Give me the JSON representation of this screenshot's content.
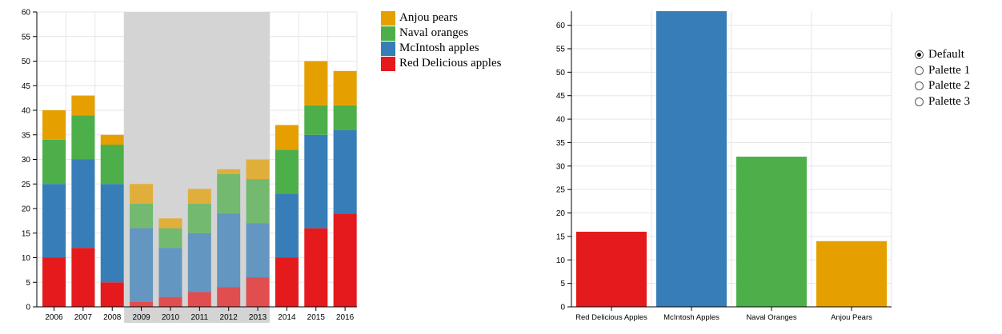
{
  "chart_data": [
    {
      "type": "bar",
      "stacked": true,
      "categories": [
        "2006",
        "2007",
        "2008",
        "2009",
        "2010",
        "2011",
        "2012",
        "2013",
        "2014",
        "2015",
        "2016"
      ],
      "series": [
        {
          "name": "Red Delicious apples",
          "values": [
            10,
            12,
            5,
            1,
            2,
            3,
            4,
            6,
            10,
            16,
            19
          ]
        },
        {
          "name": "McIntosh apples",
          "values": [
            15,
            18,
            20,
            15,
            10,
            12,
            15,
            11,
            13,
            19,
            17
          ]
        },
        {
          "name": "Naval oranges",
          "values": [
            9,
            9,
            8,
            5,
            4,
            6,
            8,
            9,
            9,
            6,
            5
          ]
        },
        {
          "name": "Anjou pears",
          "values": [
            6,
            4,
            2,
            4,
            2,
            3,
            1,
            4,
            5,
            9,
            7
          ]
        }
      ],
      "ylim": [
        0,
        60
      ],
      "yticks": [
        0,
        5,
        10,
        15,
        20,
        25,
        30,
        35,
        40,
        45,
        50,
        55,
        60
      ],
      "grid": true,
      "highlighted_range": [
        "2009",
        "2013"
      ],
      "legend_position": "right"
    },
    {
      "type": "bar",
      "categories": [
        "Red Delicious Apples",
        "McIntosh Apples",
        "Naval Oranges",
        "Anjou Pears"
      ],
      "values": [
        16,
        63,
        32,
        14
      ],
      "ylim": [
        0,
        63
      ],
      "yticks": [
        0,
        5,
        10,
        15,
        20,
        25,
        30,
        35,
        40,
        45,
        50,
        55,
        60
      ],
      "grid": true
    }
  ],
  "colors": {
    "Red Delicious apples": "#e41a1c",
    "McIntosh apples": "#377eb8",
    "Naval oranges": "#4daf4a",
    "Anjou pears": "#e5a000",
    "highlight_band": "#d4d4d4"
  },
  "palette_options": [
    {
      "label": "Default",
      "checked": true
    },
    {
      "label": "Palette 1",
      "checked": false
    },
    {
      "label": "Palette 2",
      "checked": false
    },
    {
      "label": "Palette 3",
      "checked": false
    }
  ]
}
